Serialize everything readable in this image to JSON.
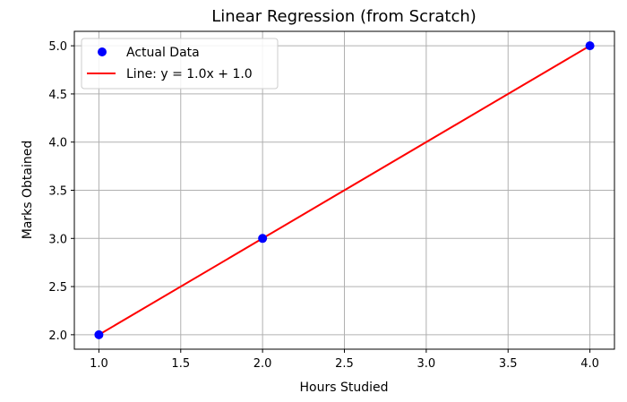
{
  "chart_data": {
    "type": "scatter",
    "title": "Linear Regression (from Scratch)",
    "xlabel": "Hours Studied",
    "ylabel": "Marks Obtained",
    "xlim": [
      0.85,
      4.15
    ],
    "ylim": [
      1.85,
      5.15
    ],
    "xticks": [
      1.0,
      1.5,
      2.0,
      2.5,
      3.0,
      3.5,
      4.0
    ],
    "xtick_labels": [
      "1.0",
      "1.5",
      "2.0",
      "2.5",
      "3.0",
      "3.5",
      "4.0"
    ],
    "yticks": [
      2.0,
      2.5,
      3.0,
      3.5,
      4.0,
      4.5,
      5.0
    ],
    "ytick_labels": [
      "2.0",
      "2.5",
      "3.0",
      "3.5",
      "4.0",
      "4.5",
      "5.0"
    ],
    "grid": true,
    "legend_position": "top-left",
    "series": [
      {
        "name": "Actual Data",
        "kind": "scatter",
        "color": "#0000ff",
        "x": [
          1,
          2,
          4
        ],
        "y": [
          2,
          3,
          5
        ]
      },
      {
        "name": "Line: y = 1.0x + 1.0",
        "kind": "line",
        "color": "#ff0000",
        "x": [
          1,
          2,
          4
        ],
        "y": [
          2,
          3,
          5
        ]
      }
    ]
  }
}
